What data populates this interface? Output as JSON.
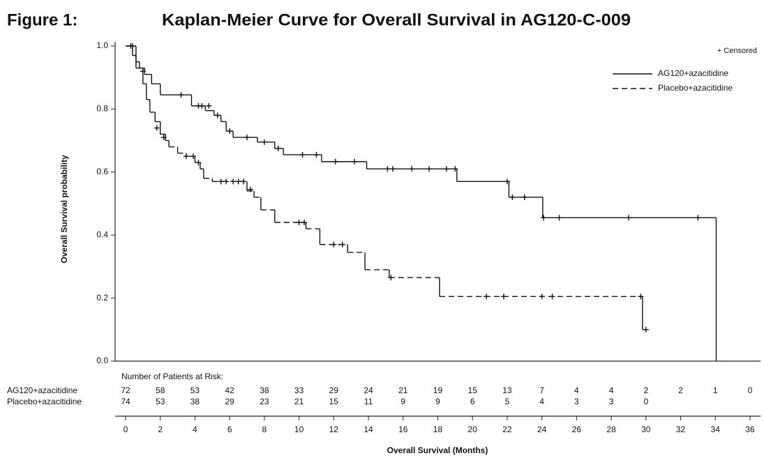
{
  "chart_data": {
    "type": "km",
    "figure_label": "Figure 1:",
    "title": "Kaplan-Meier Curve for Overall Survival in AG120-C-009",
    "x_label": "Overall Survival (Months)",
    "y_label": "Overall Survival probability",
    "censored_label": "+ Censored",
    "xlim": [
      -0.2,
      36.5
    ],
    "ylim": [
      0,
      1
    ],
    "xticks": [
      0,
      2,
      4,
      6,
      8,
      10,
      12,
      14,
      16,
      18,
      20,
      22,
      24,
      26,
      28,
      30,
      32,
      34,
      36
    ],
    "yticks": [
      {
        "value": 0,
        "label": "0.0"
      },
      0.2,
      0.4,
      0.6,
      0.8,
      {
        "value": 1,
        "label": "1.0"
      }
    ],
    "series": [
      {
        "name": "AG120+azacitidine",
        "color": "#111111",
        "dash": "solid",
        "x": [
          0,
          0.4,
          0.6,
          0.8,
          1.1,
          1.5,
          2,
          3.8,
          4.6,
          5.1,
          5.5,
          5.8,
          6.2,
          7.6,
          8.6,
          9.1,
          11.3,
          13.9,
          19.1,
          22.1,
          24.05,
          34.05
        ],
        "values": [
          1.0,
          0.97,
          0.95,
          0.93,
          0.91,
          0.88,
          0.845,
          0.81,
          0.795,
          0.78,
          0.76,
          0.73,
          0.71,
          0.695,
          0.675,
          0.655,
          0.633,
          0.61,
          0.57,
          0.52,
          0.455,
          0
        ],
        "censored_x": [
          0.3,
          1.0,
          3.2,
          4.2,
          4.4,
          4.8,
          5.3,
          6.0,
          7.0,
          8.0,
          8.8,
          10.2,
          11.0,
          12.1,
          13.2,
          15.1,
          15.4,
          16.5,
          17.5,
          18.5,
          19.0,
          22.0,
          22.3,
          23.0,
          24.1,
          25.0,
          29.0,
          33.0
        ],
        "censored_values": [
          1.0,
          0.92,
          0.845,
          0.81,
          0.81,
          0.81,
          0.78,
          0.73,
          0.71,
          0.695,
          0.675,
          0.655,
          0.655,
          0.633,
          0.633,
          0.61,
          0.61,
          0.61,
          0.61,
          0.61,
          0.61,
          0.57,
          0.52,
          0.52,
          0.455,
          0.455,
          0.455,
          0.455
        ]
      },
      {
        "name": "Placebo+azacitidine",
        "color": "#111111",
        "dash": "dashed",
        "x": [
          0,
          0.6,
          1.0,
          1.2,
          1.4,
          1.7,
          2,
          2.3,
          2.5,
          3,
          3.5,
          4,
          4.3,
          4.5,
          5,
          7,
          7.4,
          7.8,
          8.6,
          10.4,
          11.2,
          12.8,
          13.8,
          15.2,
          18.1,
          29.8
        ],
        "values": [
          1.0,
          0.93,
          0.88,
          0.83,
          0.79,
          0.76,
          0.72,
          0.7,
          0.68,
          0.66,
          0.65,
          0.63,
          0.61,
          0.58,
          0.57,
          0.54,
          0.52,
          0.48,
          0.44,
          0.42,
          0.37,
          0.345,
          0.29,
          0.265,
          0.205,
          0.1
        ],
        "censored_x": [
          0.4,
          1.8,
          2.2,
          3.5,
          3.9,
          4.2,
          5.5,
          5.8,
          6.2,
          6.5,
          6.8,
          7.2,
          10.0,
          10.3,
          12.0,
          12.5,
          15.3,
          20.8,
          21.8,
          24.0,
          24.6,
          29.7,
          30.0
        ],
        "censored_values": [
          1.0,
          0.74,
          0.71,
          0.65,
          0.65,
          0.63,
          0.57,
          0.57,
          0.57,
          0.57,
          0.57,
          0.545,
          0.44,
          0.44,
          0.37,
          0.37,
          0.265,
          0.205,
          0.205,
          0.205,
          0.205,
          0.205,
          0.1
        ]
      }
    ],
    "risk_table": {
      "title": "Number of Patients at Risk:",
      "rows": [
        {
          "name": "AG120+azacitidine",
          "values": [
            72,
            58,
            53,
            42,
            38,
            33,
            29,
            24,
            21,
            19,
            15,
            13,
            7,
            4,
            4,
            2,
            2,
            1,
            0
          ]
        },
        {
          "name": "Placebo+azacitidine",
          "values": [
            74,
            53,
            38,
            29,
            23,
            21,
            15,
            11,
            9,
            9,
            6,
            5,
            4,
            3,
            3,
            0
          ]
        }
      ]
    }
  }
}
